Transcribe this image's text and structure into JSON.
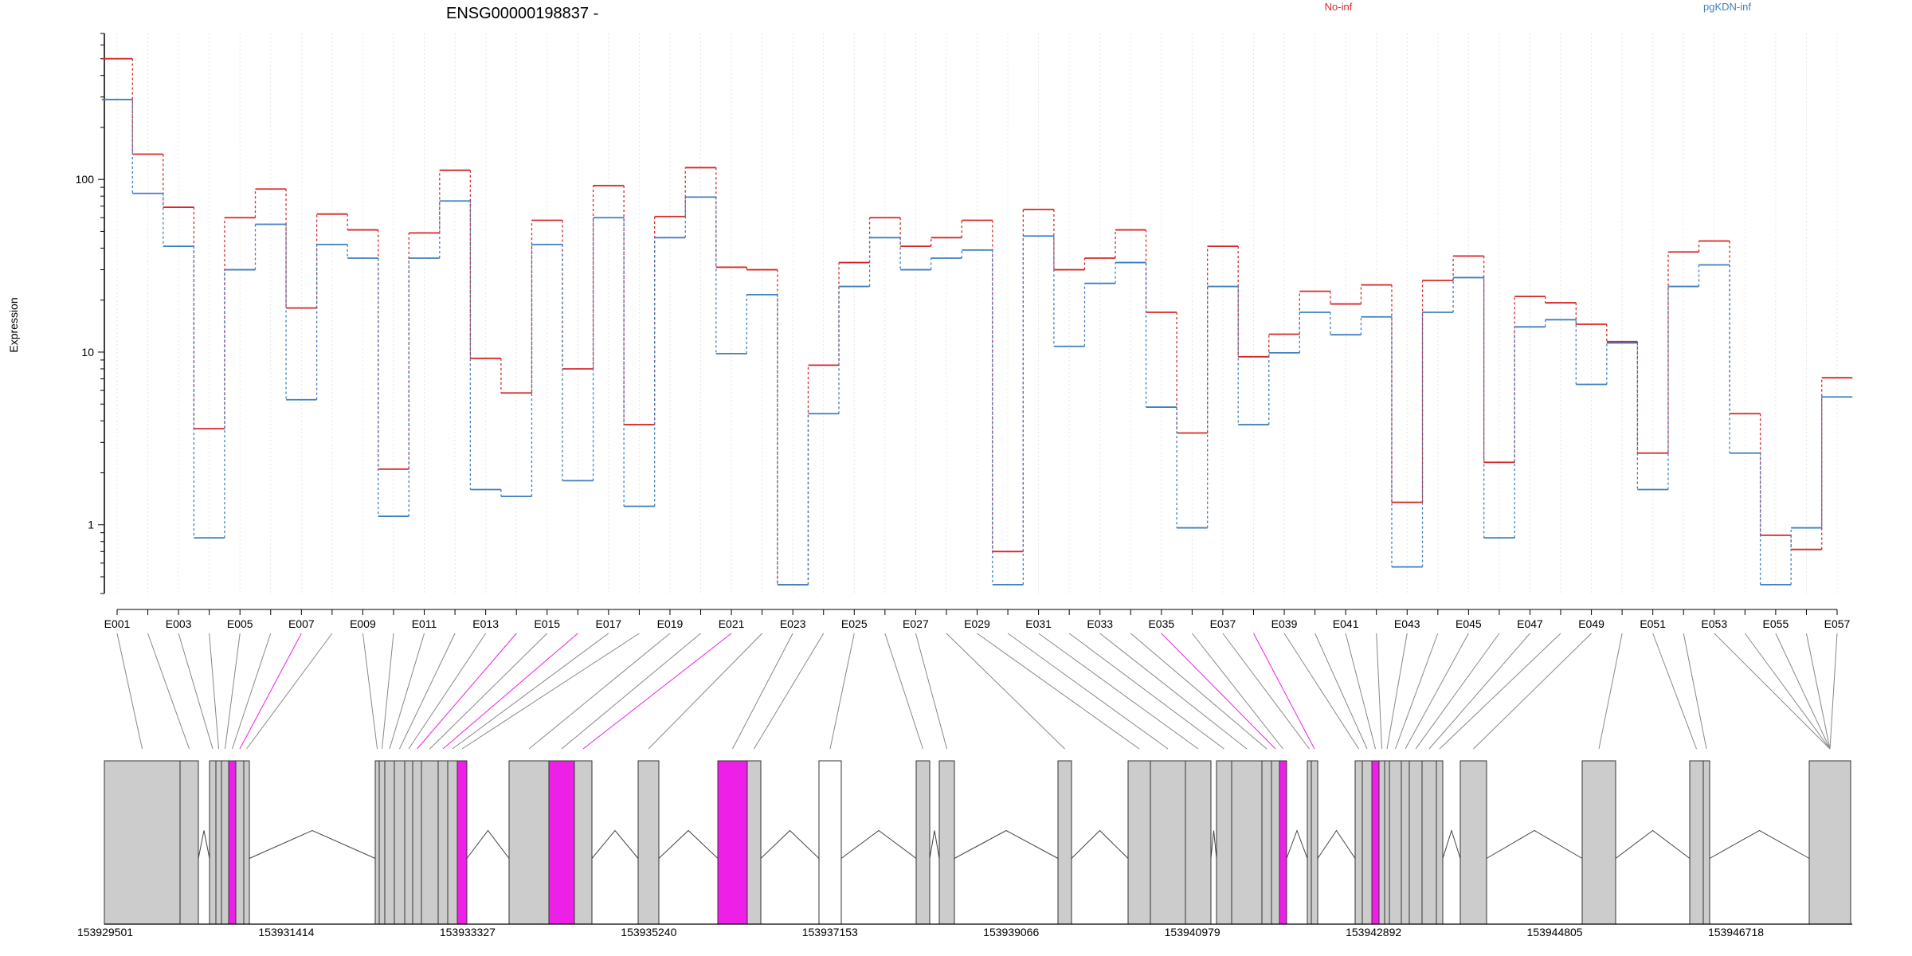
{
  "chart_data": {
    "type": "line",
    "title": "ENSG00000198837 -",
    "ylabel": "Expression",
    "yscale": "log",
    "ylim": [
      0.4,
      700
    ],
    "yticks": [
      {
        "value": 1,
        "label": "1"
      },
      {
        "value": 10,
        "label": "10"
      },
      {
        "value": 100,
        "label": "100"
      }
    ],
    "categories": [
      "E001",
      "E002",
      "E003",
      "E004",
      "E005",
      "E006",
      "E007",
      "E008",
      "E009",
      "E010",
      "E011",
      "E012",
      "E013",
      "E014",
      "E015",
      "E016",
      "E017",
      "E018",
      "E019",
      "E020",
      "E021",
      "E022",
      "E023",
      "E024",
      "E025",
      "E026",
      "E027",
      "E028",
      "E029",
      "E030",
      "E031",
      "E032",
      "E033",
      "E034",
      "E035",
      "E036",
      "E037",
      "E038",
      "E039",
      "E040",
      "E041",
      "E042",
      "E043",
      "E044",
      "E045",
      "E046",
      "E047",
      "E048",
      "E049",
      "E050",
      "E051",
      "E052",
      "E053",
      "E054",
      "E055",
      "E056",
      "E057"
    ],
    "tick_labels": [
      "E001",
      "E003",
      "E005",
      "E007",
      "E009",
      "E011",
      "E013",
      "E015",
      "E017",
      "E019",
      "E021",
      "E023",
      "E025",
      "E027",
      "E029",
      "E031",
      "E033",
      "E035",
      "E037",
      "E039",
      "E041",
      "E043",
      "E045",
      "E047",
      "E049",
      "E051",
      "E053",
      "E055",
      "E057"
    ],
    "series": [
      {
        "name": "No-inf",
        "color": "#d62728",
        "values": [
          500,
          140,
          69,
          3.6,
          60,
          88,
          18,
          63,
          51,
          2.1,
          49,
          113,
          9.2,
          5.8,
          58,
          8,
          92,
          3.8,
          61,
          117,
          31,
          30,
          0.45,
          8.4,
          33,
          60,
          41,
          46,
          58,
          0.7,
          67,
          30,
          35,
          51,
          17,
          3.4,
          41,
          9.4,
          12.7,
          22.5,
          19,
          24.5,
          1.35,
          26,
          36,
          2.3,
          21,
          19.3,
          14.5,
          11.5,
          2.6,
          38,
          44,
          4.4,
          0.87,
          0.72,
          7.1
        ]
      },
      {
        "name": "pgKDN-inf",
        "color": "#3f7fbf",
        "values": [
          290,
          83,
          41,
          0.84,
          30,
          55,
          5.3,
          42,
          35,
          1.12,
          35,
          75,
          1.6,
          1.46,
          42,
          1.8,
          60,
          1.28,
          46,
          79,
          9.8,
          21.5,
          0.45,
          4.4,
          24,
          46,
          30,
          35,
          39,
          0.45,
          47,
          10.8,
          25,
          33,
          4.8,
          0.96,
          24,
          3.8,
          9.9,
          17,
          12.6,
          16,
          0.57,
          17,
          27,
          0.84,
          14,
          15.4,
          6.5,
          11.3,
          1.6,
          24,
          32,
          2.6,
          0.45,
          0.96,
          5.5
        ]
      }
    ],
    "legend": [
      "No-inf",
      "pgKDN-inf"
    ],
    "legend_placement": "top-right",
    "grid": false,
    "highlight_color": "#ee1fe6",
    "exon_color": "#cccccc",
    "gene_model": {
      "highlighted_exons": [
        "E007",
        "E014",
        "E016",
        "E021",
        "E035",
        "E038"
      ],
      "coordinate_labels": [
        "153929501",
        "153931414",
        "153933327",
        "153935240",
        "153937153",
        "153939066",
        "153940979",
        "153942892",
        "153944805",
        "153946718"
      ]
    }
  }
}
